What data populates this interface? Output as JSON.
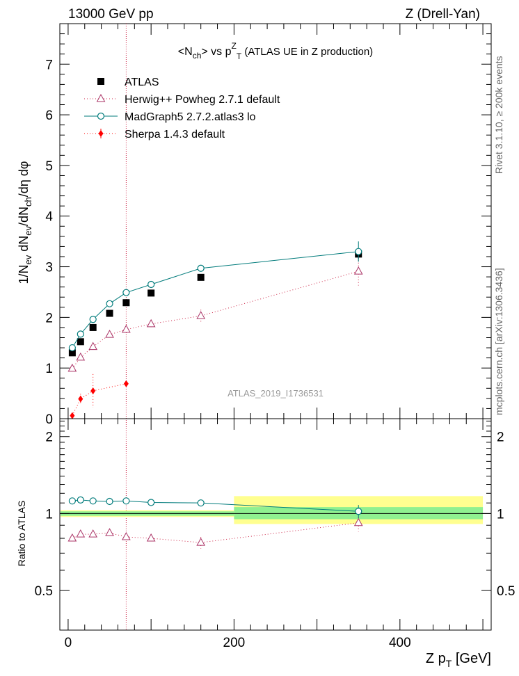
{
  "header": {
    "energy": "13000 GeV pp",
    "process": "Z (Drell-Yan)"
  },
  "side_labels": {
    "rivet": "Rivet 3.1.10, ≥ 200k events",
    "mcplots": "mcplots.cern.ch [arXiv:1306.3436]"
  },
  "colors": {
    "atlas": "#000000",
    "herwig": "#aa3366",
    "herwig_line": "#cc2244",
    "madgraph": "#007b7b",
    "sherpa": "#ff0000",
    "band_inner": "#90f090",
    "band_outer": "#ffff90"
  },
  "chart_data": [
    {
      "type": "scatter",
      "title": "<Nch> vs pT^Z (ATLAS UE in Z production)",
      "ylabel": "1/Nev dNev/dNch/dη dφ",
      "watermark": "ATLAS_2019_I1736531",
      "xlim": [
        -10,
        510
      ],
      "ylim": [
        0,
        7.8
      ],
      "yticks": [
        0,
        1,
        2,
        3,
        4,
        5,
        6,
        7
      ],
      "legend_position": "top-left",
      "vertical_marker_x": 70,
      "series": [
        {
          "name": "ATLAS",
          "marker": "square",
          "x": [
            5,
            15,
            30,
            50,
            70,
            100,
            160,
            350
          ],
          "y": [
            1.3,
            1.52,
            1.8,
            2.08,
            2.29,
            2.48,
            2.79,
            3.25
          ],
          "yerr": [
            0.03,
            0.03,
            0.03,
            0.04,
            0.04,
            0.05,
            0.06,
            0.1
          ]
        },
        {
          "name": "Herwig++ Powheg 2.7.1 default",
          "marker": "triangle",
          "x": [
            5,
            15,
            30,
            50,
            70,
            100,
            160,
            350
          ],
          "y": [
            0.99,
            1.21,
            1.42,
            1.66,
            1.76,
            1.87,
            2.03,
            2.91
          ],
          "yerr": [
            0.02,
            0.02,
            0.03,
            0.04,
            0.05,
            0.06,
            0.12,
            0.28
          ]
        },
        {
          "name": "MadGraph5 2.7.2.atlas3 lo",
          "marker": "circle",
          "x": [
            5,
            15,
            30,
            50,
            70,
            100,
            160,
            350
          ],
          "y": [
            1.4,
            1.67,
            1.96,
            2.27,
            2.49,
            2.65,
            2.97,
            3.3
          ],
          "yerr": [
            0.02,
            0.02,
            0.03,
            0.03,
            0.04,
            0.05,
            0.06,
            0.2
          ]
        },
        {
          "name": "Sherpa 1.4.3 default",
          "marker": "diamond",
          "x": [
            5,
            15,
            30,
            70
          ],
          "y": [
            0.06,
            0.39,
            0.55,
            0.69
          ],
          "yerr": [
            0.04,
            0.1,
            0.33,
            0.03
          ]
        }
      ]
    },
    {
      "type": "scatter",
      "xlabel": "Z pT [GeV]",
      "ylabel": "Ratio to ATLAS",
      "xlim": [
        -10,
        510
      ],
      "ylim": [
        0.35,
        2.35
      ],
      "yticks": [
        0.5,
        1,
        2
      ],
      "xticks": [
        0,
        200,
        400
      ],
      "band": {
        "edges": [
          -10,
          200,
          500
        ],
        "inner": [
          [
            0.98,
            1.02
          ],
          [
            0.95,
            1.06
          ]
        ],
        "outer": [
          [
            0.97,
            1.03
          ],
          [
            0.91,
            1.17
          ]
        ]
      },
      "series": [
        {
          "name": "Herwig++ Powheg 2.7.1 default",
          "x": [
            5,
            15,
            30,
            50,
            70,
            100,
            160,
            350
          ],
          "y": [
            0.8,
            0.83,
            0.83,
            0.84,
            0.81,
            0.8,
            0.77,
            0.92
          ],
          "yerr": [
            0.01,
            0.01,
            0.02,
            0.02,
            0.02,
            0.02,
            0.04,
            0.07
          ]
        },
        {
          "name": "MadGraph5 2.7.2.atlas3 lo",
          "x": [
            5,
            15,
            30,
            50,
            70,
            100,
            160,
            350
          ],
          "y": [
            1.12,
            1.13,
            1.12,
            1.115,
            1.12,
            1.105,
            1.1,
            1.02
          ],
          "yerr": [
            0.01,
            0.01,
            0.01,
            0.01,
            0.01,
            0.01,
            0.02,
            0.06
          ]
        }
      ]
    }
  ]
}
